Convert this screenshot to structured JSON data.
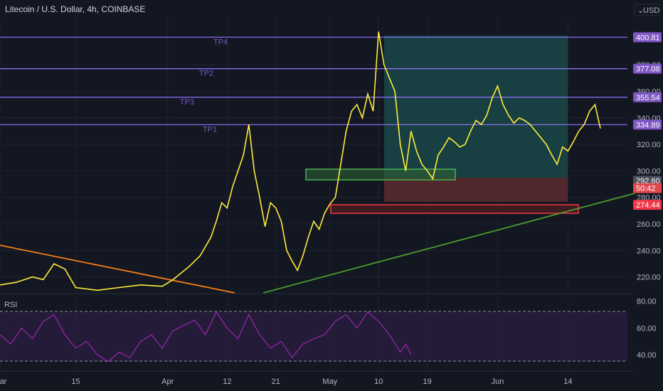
{
  "header": {
    "title": "Litecoin / U.S. Dollar, 4h, COINBASE",
    "currency": "USD"
  },
  "colors": {
    "background": "#131722",
    "grid": "#1f2331",
    "axis_text": "#b2b5be",
    "up_candle": "#26a69a",
    "down_candle": "#ef5350",
    "line_series": "#ffeb3b",
    "tp_line": "#9575ff",
    "tp_badge": "#7e57c2",
    "profit_zone": "#1b4f4e",
    "loss_zone": "#5a2a2e",
    "support_box": "#4caf50",
    "resistance_box": "#f23645",
    "trend_up": "#4b9b2d",
    "trend_down": "#f57f17",
    "rsi_line": "#9c27b0",
    "rsi_band": "#2a1e40"
  },
  "chart_data": [
    {
      "type": "line",
      "title": "Litecoin / U.S. Dollar, 4h, COINBASE",
      "ylim": [
        208,
        416
      ],
      "y_ticks": [
        220,
        240,
        260,
        280,
        300,
        320,
        340,
        360,
        380
      ],
      "x_ticks": [
        "Mar",
        "15",
        "Apr",
        "12",
        "21",
        "May",
        "10",
        "19",
        "Jun",
        "14"
      ],
      "x_tick_days": [
        0,
        14,
        31,
        42,
        51,
        61,
        70,
        79,
        92,
        105
      ],
      "xlim_days": [
        0,
        116
      ],
      "series": [
        {
          "values_by_day": [
            [
              0,
              214
            ],
            [
              3,
              216
            ],
            [
              6,
              220
            ],
            [
              8,
              218
            ],
            [
              10,
              230
            ],
            [
              12,
              226
            ],
            [
              14,
              212
            ],
            [
              18,
              210
            ],
            [
              22,
              212
            ],
            [
              26,
              214
            ],
            [
              30,
              213
            ],
            [
              32,
              218
            ],
            [
              35,
              228
            ],
            [
              37,
              236
            ],
            [
              39,
              250
            ],
            [
              40,
              262
            ],
            [
              41,
              276
            ],
            [
              42,
              272
            ],
            [
              43,
              288
            ],
            [
              44,
              300
            ],
            [
              45,
              312
            ],
            [
              46,
              335
            ],
            [
              47,
              300
            ],
            [
              48,
              280
            ],
            [
              49,
              258
            ],
            [
              50,
              276
            ],
            [
              51,
              272
            ],
            [
              52,
              262
            ],
            [
              53,
              240
            ],
            [
              54,
              232
            ],
            [
              55,
              225
            ],
            [
              56,
              236
            ],
            [
              57,
              250
            ],
            [
              58,
              262
            ],
            [
              59,
              256
            ],
            [
              60,
              268
            ],
            [
              61,
              275
            ],
            [
              62,
              280
            ],
            [
              63,
              305
            ],
            [
              64,
              330
            ],
            [
              65,
              345
            ],
            [
              66,
              350
            ],
            [
              67,
              340
            ],
            [
              68,
              358
            ],
            [
              69,
              345
            ],
            [
              70,
              405
            ],
            [
              71,
              380
            ],
            [
              72,
              370
            ],
            [
              73,
              360
            ],
            [
              74,
              320
            ],
            [
              75,
              300
            ],
            [
              76,
              330
            ],
            [
              77,
              315
            ],
            [
              78,
              305
            ],
            [
              79,
              300
            ],
            [
              80,
              294
            ],
            [
              81,
              312
            ],
            [
              82,
              318
            ],
            [
              83,
              325
            ],
            [
              84,
              322
            ],
            [
              85,
              318
            ],
            [
              86,
              320
            ],
            [
              87,
              330
            ],
            [
              88,
              338
            ],
            [
              89,
              335
            ],
            [
              90,
              342
            ],
            [
              91,
              355
            ],
            [
              92,
              364
            ],
            [
              93,
              350
            ],
            [
              94,
              342
            ],
            [
              95,
              336
            ],
            [
              96,
              340
            ],
            [
              97,
              338
            ],
            [
              98,
              335
            ],
            [
              99,
              330
            ],
            [
              100,
              325
            ],
            [
              101,
              320
            ],
            [
              102,
              312
            ],
            [
              103,
              305
            ],
            [
              104,
              318
            ],
            [
              105,
              315
            ],
            [
              106,
              322
            ],
            [
              107,
              330
            ],
            [
              108,
              335
            ],
            [
              109,
              345
            ],
            [
              110,
              350
            ],
            [
              111,
              332
            ]
          ]
        }
      ],
      "horizontal_levels": [
        {
          "label": "TP4",
          "value": 400.81,
          "badge": "400.81",
          "color": "#7e57c2"
        },
        {
          "label": "TP2",
          "value": 377.08,
          "badge": "377.08",
          "color": "#7e57c2"
        },
        {
          "label": "TP3",
          "value": 355.54,
          "badge": "355.54",
          "color": "#7e57c2"
        },
        {
          "label": "TP1",
          "value": 334.89,
          "badge": "334.89",
          "color": "#7e57c2"
        }
      ],
      "price_badges": [
        {
          "text": "292.60",
          "value": 292.6,
          "color": "#4a4f5c"
        },
        {
          "text": "50:42",
          "value": 287.0,
          "color": "#e0484f"
        },
        {
          "text": "274.44",
          "value": 274.44,
          "color": "#f23645"
        }
      ]
    },
    {
      "type": "line",
      "title": "RSI",
      "ylim": [
        30,
        83
      ],
      "y_ticks": [
        40,
        60,
        80
      ],
      "bands": [
        30,
        70
      ],
      "series": [
        {
          "name": "RSI",
          "values_by_day": [
            [
              0,
              55
            ],
            [
              2,
              48
            ],
            [
              4,
              60
            ],
            [
              6,
              52
            ],
            [
              8,
              65
            ],
            [
              10,
              70
            ],
            [
              12,
              55
            ],
            [
              14,
              45
            ],
            [
              16,
              50
            ],
            [
              18,
              40
            ],
            [
              20,
              35
            ],
            [
              22,
              42
            ],
            [
              24,
              38
            ],
            [
              26,
              50
            ],
            [
              28,
              55
            ],
            [
              30,
              45
            ],
            [
              32,
              58
            ],
            [
              34,
              62
            ],
            [
              36,
              66
            ],
            [
              38,
              55
            ],
            [
              40,
              72
            ],
            [
              42,
              60
            ],
            [
              44,
              52
            ],
            [
              46,
              70
            ],
            [
              48,
              55
            ],
            [
              50,
              45
            ],
            [
              52,
              50
            ],
            [
              54,
              38
            ],
            [
              56,
              48
            ],
            [
              58,
              52
            ],
            [
              60,
              55
            ],
            [
              62,
              65
            ],
            [
              64,
              70
            ],
            [
              66,
              60
            ],
            [
              68,
              72
            ],
            [
              70,
              65
            ],
            [
              72,
              55
            ],
            [
              74,
              42
            ],
            [
              75,
              48
            ],
            [
              76,
              40
            ]
          ]
        }
      ]
    }
  ]
}
